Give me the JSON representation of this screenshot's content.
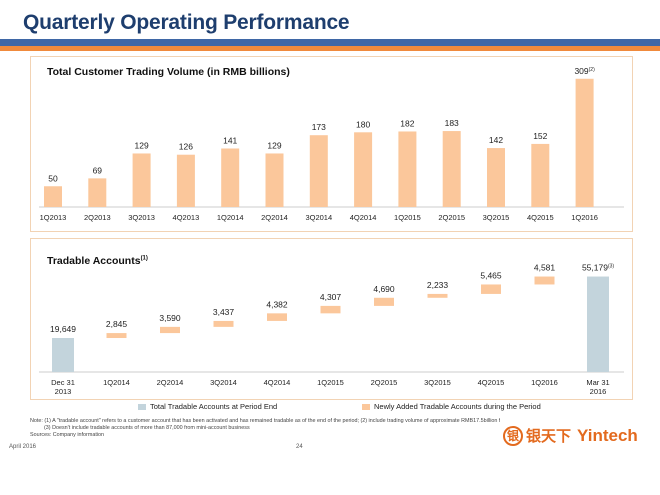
{
  "header": {
    "title": "Quarterly Operating Performance"
  },
  "colors": {
    "orange_bar": "#fbc79b",
    "grey_bar": "#c3d4dc",
    "title_blue": "#1e3e6e",
    "accent_orange": "#f08a3c",
    "band_blue": "#3f67a6"
  },
  "chart_data": [
    {
      "type": "bar",
      "title": "Total Customer Trading Volume (in RMB billions)",
      "categories": [
        "1Q2013",
        "2Q2013",
        "3Q2013",
        "4Q2013",
        "1Q2014",
        "2Q2014",
        "3Q2014",
        "4Q2014",
        "1Q2015",
        "2Q2015",
        "3Q2015",
        "4Q2015",
        "1Q2016"
      ],
      "values": [
        50,
        69,
        129,
        126,
        141,
        129,
        173,
        180,
        182,
        183,
        142,
        152,
        309
      ],
      "labels": [
        "50",
        "69",
        "129",
        "126",
        "141",
        "129",
        "173",
        "180",
        "182",
        "183",
        "142",
        "152",
        "309"
      ],
      "label_notes": [
        "",
        "",
        "",
        "",
        "",
        "",
        "",
        "",
        "",
        "",
        "",
        "",
        "(2)"
      ],
      "ylim": [
        0,
        320
      ]
    },
    {
      "type": "bar",
      "title": "Tradable Accounts",
      "title_note": "(1)",
      "categories": [
        "Dec 31\n2013",
        "1Q2014",
        "2Q2014",
        "3Q2014",
        "4Q2014",
        "1Q2015",
        "2Q2015",
        "3Q2015",
        "4Q2015",
        "1Q2016",
        "Mar 31\n2016"
      ],
      "series": [
        {
          "name": "Total Tradable Accounts at Period End",
          "kind": "total"
        },
        {
          "name": "Newly Added Tradable Accounts during the Period",
          "kind": "increment"
        }
      ],
      "values": [
        19649,
        2845,
        3590,
        3437,
        4382,
        4307,
        4690,
        2233,
        5465,
        4581,
        55179
      ],
      "labels": [
        "19,649",
        "2,845",
        "3,590",
        "3,437",
        "4,382",
        "4,307",
        "4,690",
        "2,233",
        "5,465",
        "4,581",
        "55,179"
      ],
      "label_notes": [
        "",
        "",
        "",
        "",
        "",
        "",
        "",
        "",
        "",
        "",
        "(3)"
      ]
    }
  ],
  "footnotes": [
    "Note: (1) A \"tradable account\" refers to a customer account that has been activated and has remained tradable as of the end of the period; (2) include trading volume of approximate RMB17.5billion from mini-account business;",
    "(3) Doesn't include tradable accounts of more than 87,000 from mini-account business",
    "Sources: Company information"
  ],
  "footer": {
    "date": "April 2016",
    "page": "24"
  },
  "logo": {
    "mark": "银",
    "cn": "银天下",
    "en": "Yintech"
  }
}
